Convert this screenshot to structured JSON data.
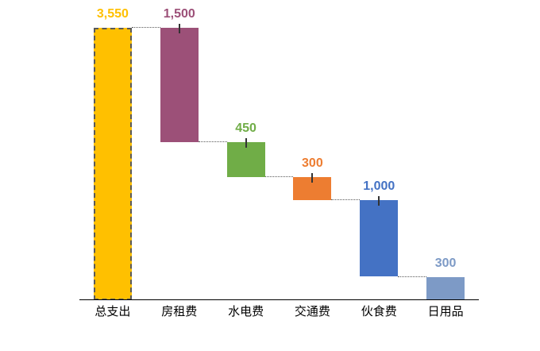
{
  "chart": {
    "background_color": "#ffffff",
    "axis_color": "#000000",
    "connector_color": "#595959",
    "tick_color": "#333333",
    "total_bar_border_color": "#595959"
  },
  "chart_data": {
    "type": "bar",
    "subtype": "waterfall",
    "title": "",
    "xlabel": "",
    "ylabel": "",
    "grid": false,
    "legend": false,
    "ylim": [
      0,
      3550
    ],
    "categories": [
      "总支出",
      "房租费",
      "水电费",
      "交通费",
      "伙食费",
      "日用品"
    ],
    "values": [
      3550,
      1500,
      450,
      300,
      1000,
      300
    ],
    "value_labels": [
      "3,550",
      "1,500",
      "450",
      "300",
      "1,000",
      "300"
    ],
    "connector_style": "dotted",
    "segments": [
      {
        "label": "总支出",
        "value": 3550,
        "value_label": "3,550",
        "from": 0,
        "to": 3550,
        "color": "#FFC000",
        "label_color": "#FFC000",
        "is_total": true,
        "tick": false
      },
      {
        "label": "房租费",
        "value": 1500,
        "value_label": "1,500",
        "from": 2050,
        "to": 3550,
        "color": "#9C5078",
        "label_color": "#9C5078",
        "is_total": false,
        "tick": true
      },
      {
        "label": "水电费",
        "value": 450,
        "value_label": "450",
        "from": 1600,
        "to": 2050,
        "color": "#70AD47",
        "label_color": "#70AD47",
        "is_total": false,
        "tick": true
      },
      {
        "label": "交通费",
        "value": 300,
        "value_label": "300",
        "from": 1300,
        "to": 1600,
        "color": "#ED7D31",
        "label_color": "#ED7D31",
        "is_total": false,
        "tick": true
      },
      {
        "label": "伙食费",
        "value": 1000,
        "value_label": "1,000",
        "from": 300,
        "to": 1300,
        "color": "#4472C4",
        "label_color": "#4472C4",
        "is_total": false,
        "tick": true
      },
      {
        "label": "日用品",
        "value": 300,
        "value_label": "300",
        "from": 0,
        "to": 300,
        "color": "#7D9AC6",
        "label_color": "#7D9AC6",
        "is_total": false,
        "tick": false
      }
    ]
  }
}
